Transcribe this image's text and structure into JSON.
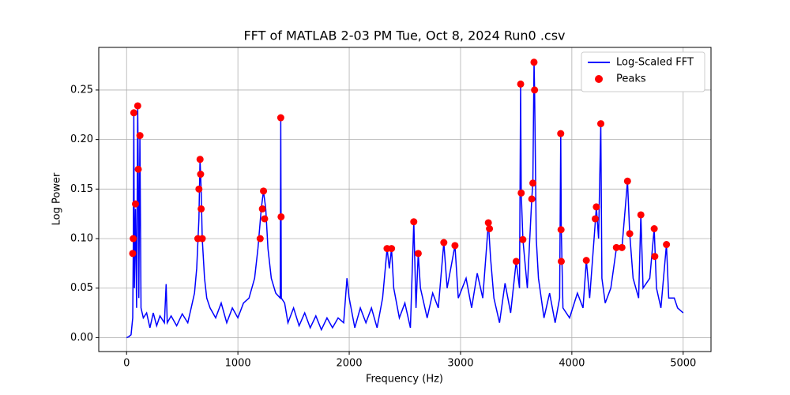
{
  "chart_data": {
    "type": "line",
    "title": "FFT of MATLAB 2-03 PM Tue, Oct 8, 2024 Run0 .csv",
    "x_label": "Frequency (Hz)",
    "y_label": "Log Power",
    "xlim": [
      -250,
      5250
    ],
    "ylim": [
      -0.014,
      0.293
    ],
    "xticks": [
      0,
      1000,
      2000,
      3000,
      4000,
      5000
    ],
    "yticks": [
      0.0,
      0.05,
      0.1,
      0.15,
      0.2,
      0.25
    ],
    "grid": true,
    "legend": "upper right",
    "series": [
      {
        "name": "Log-Scaled FFT",
        "color": "#0000ff",
        "kind": "line",
        "x": [
          0,
          20,
          40,
          55,
          60,
          65,
          70,
          80,
          90,
          100,
          105,
          110,
          120,
          130,
          150,
          180,
          210,
          240,
          270,
          300,
          340,
          355,
          365,
          400,
          450,
          500,
          550,
          580,
          610,
          630,
          650,
          660,
          670,
          680,
          700,
          720,
          750,
          800,
          850,
          900,
          950,
          1000,
          1050,
          1100,
          1150,
          1180,
          1210,
          1230,
          1250,
          1270,
          1300,
          1340,
          1380,
          1385,
          1390,
          1420,
          1450,
          1500,
          1550,
          1600,
          1650,
          1700,
          1750,
          1800,
          1850,
          1900,
          1950,
          1980,
          2000,
          2050,
          2100,
          2150,
          2200,
          2250,
          2300,
          2340,
          2360,
          2380,
          2400,
          2450,
          2500,
          2550,
          2580,
          2600,
          2620,
          2640,
          2700,
          2750,
          2800,
          2850,
          2880,
          2950,
          2980,
          3050,
          3100,
          3150,
          3200,
          3250,
          3270,
          3300,
          3350,
          3400,
          3450,
          3500,
          3530,
          3540,
          3545,
          3560,
          3600,
          3640,
          3650,
          3660,
          3665,
          3680,
          3700,
          3750,
          3800,
          3850,
          3890,
          3900,
          3905,
          3920,
          3980,
          4050,
          4100,
          4130,
          4160,
          4200,
          4220,
          4240,
          4260,
          4270,
          4300,
          4350,
          4400,
          4450,
          4500,
          4520,
          4550,
          4600,
          4620,
          4640,
          4700,
          4740,
          4760,
          4800,
          4850,
          4870,
          4920,
          4950,
          5000
        ],
        "values": [
          0,
          0.001,
          0.003,
          0.02,
          0.09,
          0.227,
          0.05,
          0.13,
          0.03,
          0.234,
          0.17,
          0.04,
          0.204,
          0.03,
          0.02,
          0.025,
          0.01,
          0.025,
          0.012,
          0.022,
          0.015,
          0.054,
          0.015,
          0.022,
          0.012,
          0.024,
          0.015,
          0.03,
          0.045,
          0.07,
          0.12,
          0.18,
          0.15,
          0.1,
          0.06,
          0.04,
          0.03,
          0.02,
          0.035,
          0.015,
          0.03,
          0.02,
          0.035,
          0.04,
          0.06,
          0.09,
          0.13,
          0.148,
          0.13,
          0.09,
          0.06,
          0.045,
          0.04,
          0.222,
          0.04,
          0.035,
          0.015,
          0.03,
          0.012,
          0.025,
          0.01,
          0.022,
          0.008,
          0.02,
          0.01,
          0.02,
          0.015,
          0.06,
          0.04,
          0.01,
          0.03,
          0.015,
          0.03,
          0.01,
          0.04,
          0.09,
          0.07,
          0.09,
          0.05,
          0.02,
          0.035,
          0.01,
          0.117,
          0.03,
          0.085,
          0.05,
          0.02,
          0.045,
          0.03,
          0.096,
          0.05,
          0.093,
          0.04,
          0.06,
          0.03,
          0.065,
          0.04,
          0.116,
          0.08,
          0.04,
          0.015,
          0.055,
          0.025,
          0.077,
          0.05,
          0.256,
          0.146,
          0.099,
          0.05,
          0.14,
          0.156,
          0.278,
          0.25,
          0.1,
          0.06,
          0.02,
          0.045,
          0.015,
          0.04,
          0.206,
          0.109,
          0.03,
          0.02,
          0.045,
          0.03,
          0.078,
          0.04,
          0.1,
          0.132,
          0.1,
          0.216,
          0.06,
          0.035,
          0.05,
          0.09,
          0.091,
          0.158,
          0.105,
          0.06,
          0.04,
          0.124,
          0.05,
          0.06,
          0.11,
          0.05,
          0.03,
          0.094,
          0.04,
          0.04,
          0.03,
          0.025
        ]
      },
      {
        "name": "Peaks",
        "color": "#ff0000",
        "kind": "scatter",
        "x": [
          55,
          60,
          65,
          80,
          100,
          105,
          120,
          640,
          650,
          660,
          665,
          670,
          680,
          1200,
          1220,
          1230,
          1240,
          1385,
          1388,
          2340,
          2380,
          2580,
          2620,
          2850,
          2950,
          3250,
          3260,
          3500,
          3540,
          3545,
          3560,
          3640,
          3650,
          3660,
          3665,
          3900,
          3903,
          3905,
          4130,
          4210,
          4220,
          4260,
          4400,
          4450,
          4500,
          4520,
          4620,
          4740,
          4745,
          4850
        ],
        "values": [
          0.085,
          0.1,
          0.227,
          0.135,
          0.234,
          0.17,
          0.204,
          0.1,
          0.15,
          0.18,
          0.165,
          0.13,
          0.1,
          0.1,
          0.13,
          0.148,
          0.12,
          0.222,
          0.122,
          0.09,
          0.09,
          0.117,
          0.085,
          0.096,
          0.093,
          0.116,
          0.11,
          0.077,
          0.256,
          0.146,
          0.099,
          0.14,
          0.156,
          0.278,
          0.25,
          0.206,
          0.109,
          0.077,
          0.078,
          0.12,
          0.132,
          0.216,
          0.091,
          0.091,
          0.158,
          0.105,
          0.124,
          0.11,
          0.082,
          0.094
        ]
      }
    ]
  }
}
